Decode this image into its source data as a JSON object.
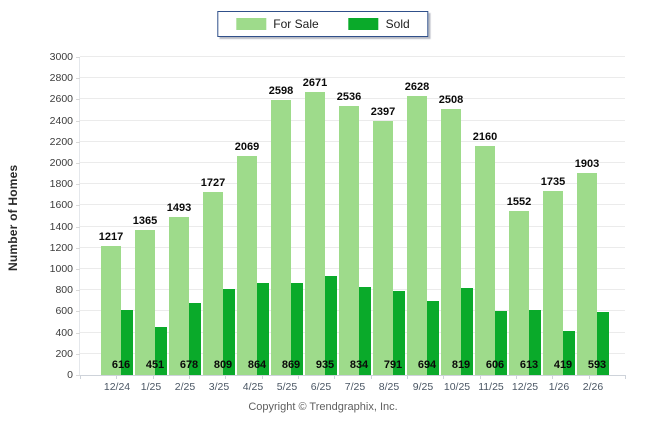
{
  "footer": {
    "copyright": "Copyright © Trendgraphix, Inc."
  },
  "chart_data": {
    "type": "bar",
    "title": "",
    "xlabel": "",
    "ylabel": "Number of Homes",
    "ylim": [
      0,
      3000
    ],
    "ytick_step": 200,
    "grid": true,
    "legend_position": "top-center",
    "categories": [
      "12/24",
      "1/25",
      "2/25",
      "3/25",
      "4/25",
      "5/25",
      "6/25",
      "7/25",
      "8/25",
      "9/25",
      "10/25",
      "11/25",
      "12/25",
      "1/26",
      "2/26"
    ],
    "series": [
      {
        "name": "For Sale",
        "color": "#9EDB8B",
        "values": [
          1217,
          1365,
          1493,
          1727,
          2069,
          2598,
          2671,
          2536,
          2397,
          2628,
          2508,
          2160,
          1552,
          1735,
          1903
        ]
      },
      {
        "name": "Sold",
        "color": "#0AAA2A",
        "values": [
          616,
          451,
          678,
          809,
          864,
          869,
          935,
          834,
          791,
          694,
          819,
          606,
          613,
          419,
          593
        ]
      }
    ]
  }
}
